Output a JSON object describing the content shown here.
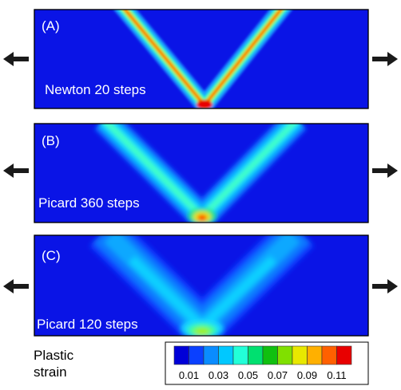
{
  "panels": [
    {
      "letter": "(A)",
      "caption": "Newton 20 steps"
    },
    {
      "letter": "(B)",
      "caption": "Picard 360 steps"
    },
    {
      "letter": "(C)",
      "caption": "Picard 120 steps"
    }
  ],
  "legend": {
    "title_line1": "Plastic",
    "title_line2": "strain",
    "ticks": [
      "0.01",
      "0.03",
      "0.05",
      "0.07",
      "0.09",
      "0.11"
    ],
    "colors": [
      "#0000d8",
      "#0a40ff",
      "#0a8cff",
      "#00c8ff",
      "#22ffd8",
      "#00e070",
      "#10c010",
      "#80e000",
      "#e8e800",
      "#ffb000",
      "#ff6000",
      "#e80000"
    ]
  },
  "colors": {
    "background_field": "#0a14e6",
    "arrow": "#1a1a1a"
  }
}
